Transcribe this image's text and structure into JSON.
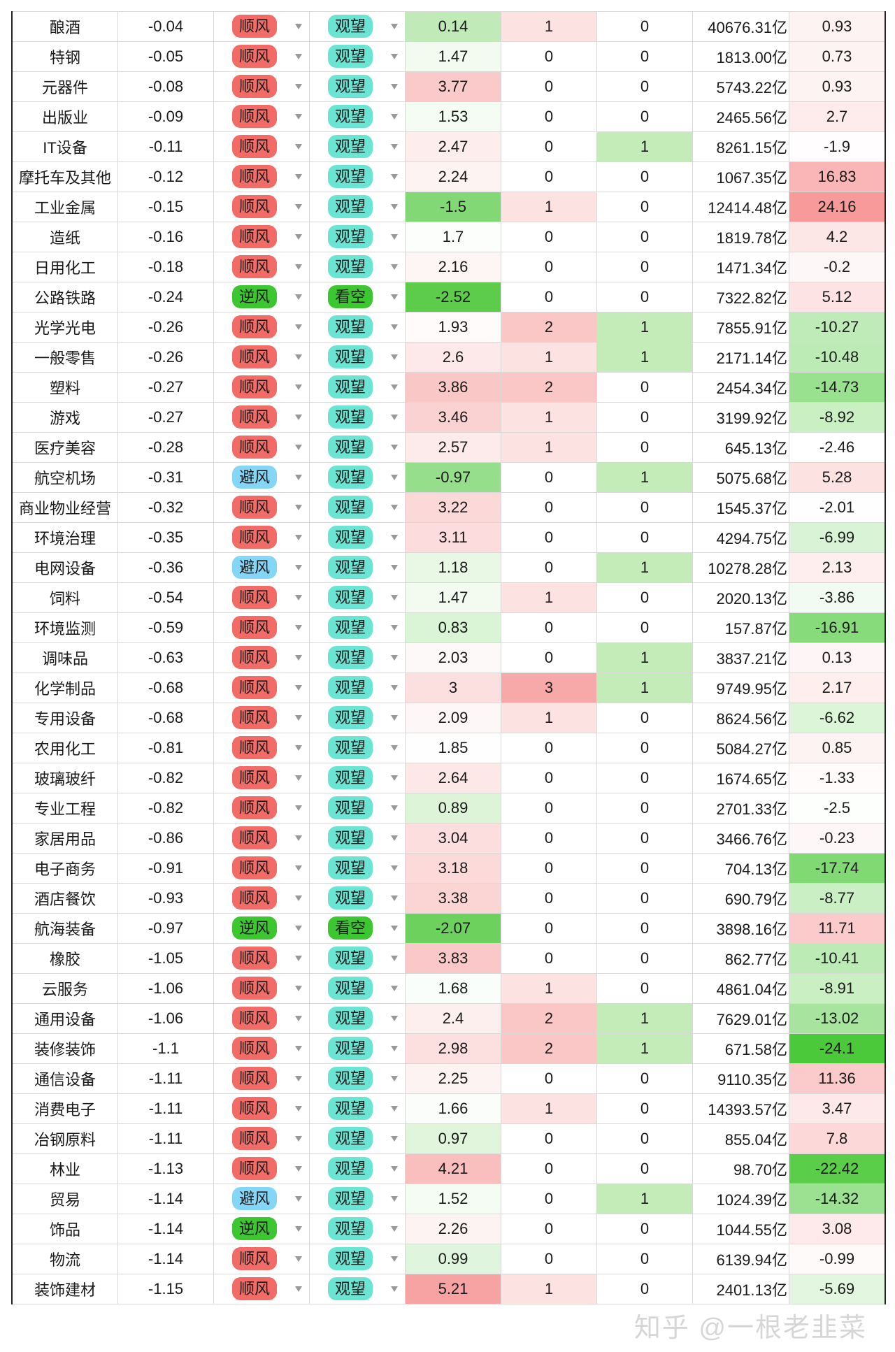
{
  "colors": {
    "shun": "#f26b66",
    "ni": "#3cc62f",
    "bi": "#84d6f7",
    "guanwang": "#6be5d3",
    "kankong": "#3cc62f"
  },
  "watermark": "知乎 @一根老韭菜",
  "rows": [
    [
      "酿酒",
      "-0.04",
      "顺风",
      "观望",
      "0.14",
      "1",
      "0",
      "40676.31亿",
      "0.93"
    ],
    [
      "特钢",
      "-0.05",
      "顺风",
      "观望",
      "1.47",
      "0",
      "0",
      "1813.00亿",
      "0.73"
    ],
    [
      "元器件",
      "-0.08",
      "顺风",
      "观望",
      "3.77",
      "0",
      "0",
      "5743.22亿",
      "0.93"
    ],
    [
      "出版业",
      "-0.09",
      "顺风",
      "观望",
      "1.53",
      "0",
      "0",
      "2465.56亿",
      "2.7"
    ],
    [
      "IT设备",
      "-0.11",
      "顺风",
      "观望",
      "2.47",
      "0",
      "1",
      "8261.15亿",
      "-1.9"
    ],
    [
      "摩托车及其他",
      "-0.12",
      "顺风",
      "观望",
      "2.24",
      "0",
      "0",
      "1067.35亿",
      "16.83"
    ],
    [
      "工业金属",
      "-0.15",
      "顺风",
      "观望",
      "-1.5",
      "1",
      "0",
      "12414.48亿",
      "24.16"
    ],
    [
      "造纸",
      "-0.16",
      "顺风",
      "观望",
      "1.7",
      "0",
      "0",
      "1819.78亿",
      "4.2"
    ],
    [
      "日用化工",
      "-0.18",
      "顺风",
      "观望",
      "2.16",
      "0",
      "0",
      "1471.34亿",
      "-0.2"
    ],
    [
      "公路铁路",
      "-0.24",
      "逆风",
      "看空",
      "-2.52",
      "0",
      "0",
      "7322.82亿",
      "5.12"
    ],
    [
      "光学光电",
      "-0.26",
      "顺风",
      "观望",
      "1.93",
      "2",
      "1",
      "7855.91亿",
      "-10.27"
    ],
    [
      "一般零售",
      "-0.26",
      "顺风",
      "观望",
      "2.6",
      "1",
      "1",
      "2171.14亿",
      "-10.48"
    ],
    [
      "塑料",
      "-0.27",
      "顺风",
      "观望",
      "3.86",
      "2",
      "0",
      "2454.34亿",
      "-14.73"
    ],
    [
      "游戏",
      "-0.27",
      "顺风",
      "观望",
      "3.46",
      "1",
      "0",
      "3199.92亿",
      "-8.92"
    ],
    [
      "医疗美容",
      "-0.28",
      "顺风",
      "观望",
      "2.57",
      "1",
      "0",
      "645.13亿",
      "-2.46"
    ],
    [
      "航空机场",
      "-0.31",
      "避风",
      "观望",
      "-0.97",
      "0",
      "1",
      "5075.68亿",
      "5.28"
    ],
    [
      "商业物业经营",
      "-0.32",
      "顺风",
      "观望",
      "3.22",
      "0",
      "0",
      "1545.37亿",
      "-2.01"
    ],
    [
      "环境治理",
      "-0.35",
      "顺风",
      "观望",
      "3.11",
      "0",
      "0",
      "4294.75亿",
      "-6.99"
    ],
    [
      "电网设备",
      "-0.36",
      "避风",
      "观望",
      "1.18",
      "0",
      "1",
      "10278.28亿",
      "2.13"
    ],
    [
      "饲料",
      "-0.54",
      "顺风",
      "观望",
      "1.47",
      "1",
      "0",
      "2020.13亿",
      "-3.86"
    ],
    [
      "环境监测",
      "-0.59",
      "顺风",
      "观望",
      "0.83",
      "0",
      "0",
      "157.87亿",
      "-16.91"
    ],
    [
      "调味品",
      "-0.63",
      "顺风",
      "观望",
      "2.03",
      "0",
      "1",
      "3837.21亿",
      "0.13"
    ],
    [
      "化学制品",
      "-0.68",
      "顺风",
      "观望",
      "3",
      "3",
      "1",
      "9749.95亿",
      "2.17"
    ],
    [
      "专用设备",
      "-0.68",
      "顺风",
      "观望",
      "2.09",
      "1",
      "0",
      "8624.56亿",
      "-6.62"
    ],
    [
      "农用化工",
      "-0.81",
      "顺风",
      "观望",
      "1.85",
      "0",
      "0",
      "5084.27亿",
      "0.85"
    ],
    [
      "玻璃玻纤",
      "-0.82",
      "顺风",
      "观望",
      "2.64",
      "0",
      "0",
      "1674.65亿",
      "-1.33"
    ],
    [
      "专业工程",
      "-0.82",
      "顺风",
      "观望",
      "0.89",
      "0",
      "0",
      "2701.33亿",
      "-2.5"
    ],
    [
      "家居用品",
      "-0.86",
      "顺风",
      "观望",
      "3.04",
      "0",
      "0",
      "3466.76亿",
      "-0.23"
    ],
    [
      "电子商务",
      "-0.91",
      "顺风",
      "观望",
      "3.18",
      "0",
      "0",
      "704.13亿",
      "-17.74"
    ],
    [
      "酒店餐饮",
      "-0.93",
      "顺风",
      "观望",
      "3.38",
      "0",
      "0",
      "690.79亿",
      "-8.77"
    ],
    [
      "航海装备",
      "-0.97",
      "逆风",
      "看空",
      "-2.07",
      "0",
      "0",
      "3898.16亿",
      "11.71"
    ],
    [
      "橡胶",
      "-1.05",
      "顺风",
      "观望",
      "3.83",
      "0",
      "0",
      "862.77亿",
      "-10.41"
    ],
    [
      "云服务",
      "-1.06",
      "顺风",
      "观望",
      "1.68",
      "1",
      "0",
      "4861.04亿",
      "-8.91"
    ],
    [
      "通用设备",
      "-1.06",
      "顺风",
      "观望",
      "2.4",
      "2",
      "1",
      "7629.01亿",
      "-13.02"
    ],
    [
      "装修装饰",
      "-1.1",
      "顺风",
      "观望",
      "2.98",
      "2",
      "1",
      "671.58亿",
      "-24.1"
    ],
    [
      "通信设备",
      "-1.11",
      "顺风",
      "观望",
      "2.25",
      "0",
      "0",
      "9110.35亿",
      "11.36"
    ],
    [
      "消费电子",
      "-1.11",
      "顺风",
      "观望",
      "1.66",
      "1",
      "0",
      "14393.57亿",
      "3.47"
    ],
    [
      "冶钢原料",
      "-1.11",
      "顺风",
      "观望",
      "0.97",
      "0",
      "0",
      "855.04亿",
      "7.8"
    ],
    [
      "林业",
      "-1.13",
      "顺风",
      "观望",
      "4.21",
      "0",
      "0",
      "98.70亿",
      "-22.42"
    ],
    [
      "贸易",
      "-1.14",
      "避风",
      "观望",
      "1.52",
      "0",
      "1",
      "1024.39亿",
      "-14.32"
    ],
    [
      "饰品",
      "-1.14",
      "逆风",
      "观望",
      "2.26",
      "0",
      "0",
      "1044.55亿",
      "3.08"
    ],
    [
      "物流",
      "-1.14",
      "顺风",
      "观望",
      "0.99",
      "0",
      "0",
      "6139.94亿",
      "-0.99"
    ],
    [
      "装饰建材",
      "-1.15",
      "顺风",
      "观望",
      "5.21",
      "1",
      "0",
      "2401.13亿",
      "-5.69"
    ]
  ]
}
